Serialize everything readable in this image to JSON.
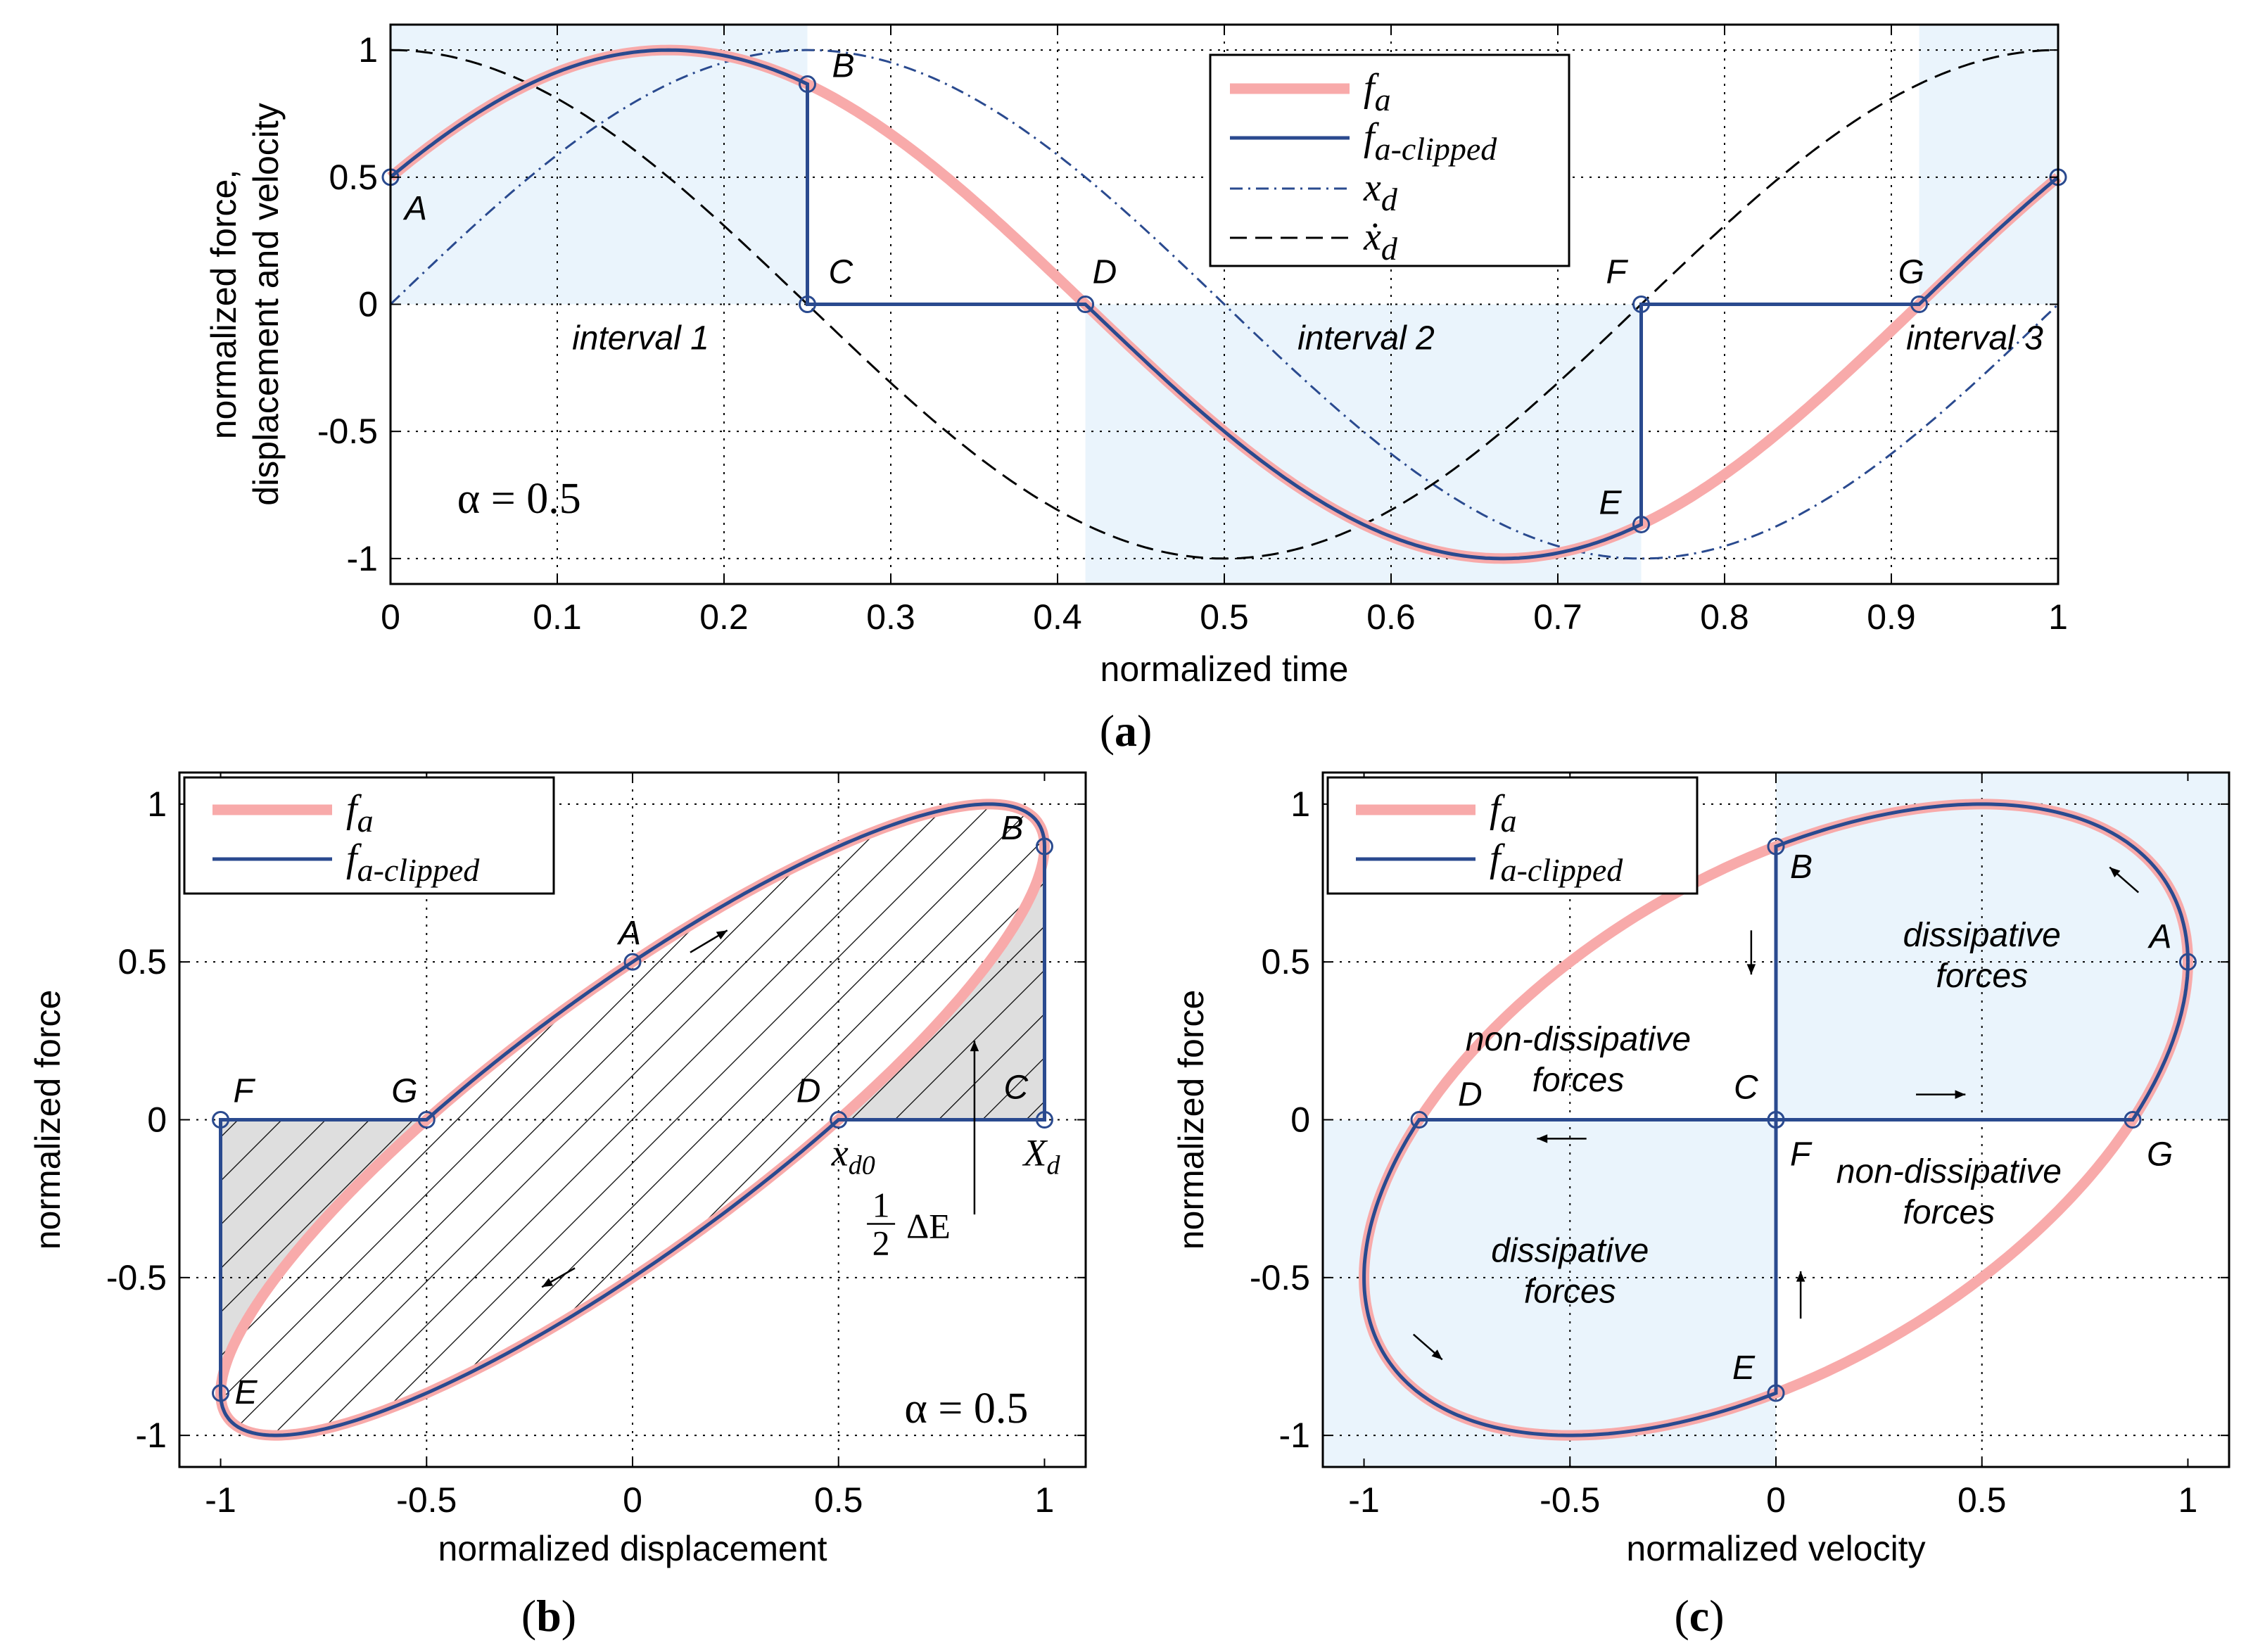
{
  "colors": {
    "fa": "#f8aaaa",
    "clipped": "#2a4a8f",
    "xd": "#2a4a8f",
    "xdot": "#000000",
    "shade": "#eaf4fc",
    "hatch_gray": "#dedede"
  },
  "chart_data": [
    {
      "id": "a",
      "type": "line",
      "caption": "a",
      "xlabel": "normalized time",
      "ylabel_lines": [
        "normalized force,",
        "displacement and velocity"
      ],
      "xlim": [
        0,
        1
      ],
      "ylim": [
        -1.1,
        1.1
      ],
      "xticks": [
        0,
        0.1,
        0.2,
        0.3,
        0.4,
        0.5,
        0.6,
        0.7,
        0.8,
        0.9,
        1
      ],
      "xtick_labels": [
        "0",
        "0.1",
        "0.2",
        "0.3",
        "0.4",
        "0.5",
        "0.6",
        "0.7",
        "0.8",
        "0.9",
        "1"
      ],
      "yticks": [
        1,
        0.5,
        0,
        -0.5,
        -1
      ],
      "ytick_labels": [
        "1",
        "0.5",
        "0",
        "-0.5",
        "-1"
      ],
      "alpha_label": "α = 0.5",
      "legend": {
        "position": "top-right",
        "entries": [
          "fa",
          "fa-clipped",
          "xd",
          "ẋd"
        ]
      },
      "series": [
        {
          "name": "fa",
          "formula": "sin(2*pi*t + pi/6)",
          "style": "thick-pink"
        },
        {
          "name": "fa-clipped",
          "formula": "clipped(sin(2*pi*t + pi/6)) to zero on [0.25,0.4167] and [0.75,0.9167]",
          "style": "solid-blue"
        },
        {
          "name": "xd",
          "formula": "sin(2*pi*t)",
          "style": "dashdot-blue"
        },
        {
          "name": "ẋd",
          "formula": "cos(2*pi*t)",
          "style": "dashed-black"
        }
      ],
      "shaded_regions": [
        {
          "x": [
            0,
            0.25
          ],
          "y": [
            0,
            1.1
          ]
        },
        {
          "x": [
            0.4167,
            0.75
          ],
          "y": [
            -1.1,
            0
          ]
        },
        {
          "x": [
            0.9167,
            1
          ],
          "y": [
            0,
            1.1
          ]
        }
      ],
      "points": [
        {
          "label": "A",
          "x": 0,
          "y": 0.5
        },
        {
          "label": "B",
          "x": 0.25,
          "y": 0.866
        },
        {
          "label": "C",
          "x": 0.25,
          "y": 0
        },
        {
          "label": "D",
          "x": 0.4167,
          "y": 0
        },
        {
          "label": "E",
          "x": 0.75,
          "y": -0.866
        },
        {
          "label": "F",
          "x": 0.75,
          "y": 0
        },
        {
          "label": "G",
          "x": 0.9167,
          "y": 0
        },
        {
          "label": "A",
          "x": 1,
          "y": 0.5,
          "hide_label": true
        }
      ],
      "annotations": [
        {
          "text": "interval 1",
          "x": 0.15,
          "y": -0.13
        },
        {
          "text": "interval 2",
          "x": 0.585,
          "y": -0.13
        },
        {
          "text": "interval 3",
          "x": 0.95,
          "y": -0.13
        }
      ]
    },
    {
      "id": "b",
      "type": "line",
      "caption": "b",
      "xlabel": "normalized displacement",
      "ylabel": "normalized force",
      "xlim": [
        -1.1,
        1.1
      ],
      "ylim": [
        -1.1,
        1.1
      ],
      "xticks": [
        -1,
        -0.5,
        0,
        0.5,
        1
      ],
      "xtick_labels": [
        "-1",
        "-0.5",
        "0",
        "0.5",
        "1"
      ],
      "yticks": [
        1,
        0.5,
        0,
        -0.5,
        -1
      ],
      "ytick_labels": [
        "1",
        "0.5",
        "0",
        "-0.5",
        "-1"
      ],
      "alpha_label": "α = 0.5",
      "legend": {
        "position": "top-left",
        "entries": [
          "fa",
          "fa-clipped"
        ]
      },
      "series": [
        {
          "name": "fa",
          "formula": "x = sin(2*pi*t), f = sin(2*pi*t + pi/6)",
          "style": "thick-pink"
        },
        {
          "name": "fa-clipped",
          "formula": "clipped loop",
          "style": "solid-blue"
        }
      ],
      "points": [
        {
          "label": "A",
          "x": 0,
          "y": 0.5
        },
        {
          "label": "B",
          "x": 1,
          "y": 0.866
        },
        {
          "label": "C",
          "x": 1,
          "y": 0
        },
        {
          "label": "D",
          "x": 0.5,
          "y": 0
        },
        {
          "label": "E",
          "x": -1,
          "y": -0.866
        },
        {
          "label": "F",
          "x": -1,
          "y": 0
        },
        {
          "label": "G",
          "x": -0.5,
          "y": 0
        }
      ],
      "annotations": [
        {
          "text": "x",
          "sub": "d0",
          "x": 0.5,
          "y": -0.1
        },
        {
          "text": "X",
          "sub": "d",
          "x": 1.0,
          "y": -0.1
        },
        {
          "text": "ΔE",
          "fraction": "1/2",
          "x": 0.75,
          "y": -0.33
        }
      ]
    },
    {
      "id": "c",
      "type": "line",
      "caption": "c",
      "xlabel": "normalized velocity",
      "ylabel": "normalized force",
      "xlim": [
        -1.1,
        1.1
      ],
      "ylim": [
        -1.1,
        1.1
      ],
      "xticks": [
        -1,
        -0.5,
        0,
        0.5,
        1
      ],
      "xtick_labels": [
        "-1",
        "-0.5",
        "0",
        "0.5",
        "1"
      ],
      "yticks": [
        1,
        0.5,
        0,
        -0.5,
        -1
      ],
      "ytick_labels": [
        "1",
        "0.5",
        "0",
        "-0.5",
        "-1"
      ],
      "legend": {
        "position": "top-left",
        "entries": [
          "fa",
          "fa-clipped"
        ]
      },
      "series": [
        {
          "name": "fa",
          "formula": "v = cos(2*pi*t), f = sin(2*pi*t + pi/6)",
          "style": "thick-pink"
        },
        {
          "name": "fa-clipped",
          "formula": "clipped loop",
          "style": "solid-blue"
        }
      ],
      "shaded_regions": [
        {
          "x": [
            0,
            1.1
          ],
          "y": [
            0,
            1.1
          ]
        },
        {
          "x": [
            -1.1,
            0
          ],
          "y": [
            -1.1,
            0
          ]
        }
      ],
      "points": [
        {
          "label": "A",
          "x": 1,
          "y": 0.5
        },
        {
          "label": "B",
          "x": 0,
          "y": 0.866
        },
        {
          "label": "C",
          "x": 0,
          "y": 0
        },
        {
          "label": "D",
          "x": -0.866,
          "y": 0
        },
        {
          "label": "E",
          "x": 0,
          "y": -0.866
        },
        {
          "label": "F",
          "x": 0,
          "y": 0
        },
        {
          "label": "G",
          "x": 0.866,
          "y": 0
        }
      ],
      "annotations": [
        {
          "lines": [
            "dissipative",
            "forces"
          ],
          "x": 0.5,
          "y": 0.55
        },
        {
          "lines": [
            "non-dissipative",
            "forces"
          ],
          "x": -0.48,
          "y": 0.22
        },
        {
          "lines": [
            "non-dissipative",
            "forces"
          ],
          "x": 0.42,
          "y": -0.2
        },
        {
          "lines": [
            "dissipative",
            "forces"
          ],
          "x": -0.5,
          "y": -0.45
        }
      ]
    }
  ]
}
